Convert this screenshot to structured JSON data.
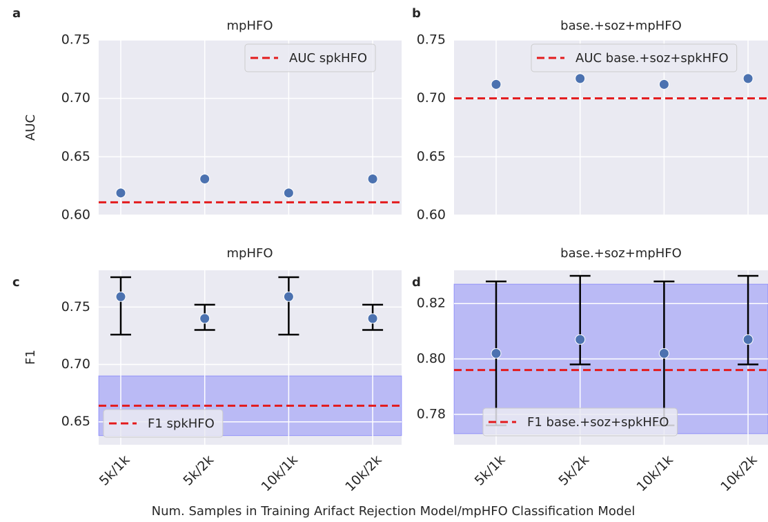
{
  "chart_data": [
    {
      "type": "scatter",
      "label": "a",
      "title": "mpHFO",
      "ylabel": "AUC",
      "categories": [
        null,
        null,
        null,
        null
      ],
      "values": [
        0.619,
        0.631,
        0.619,
        0.631
      ],
      "color": "#4c72b0",
      "reference": {
        "name": "AUC spkHFO",
        "value": 0.611,
        "color": "#e31a1c"
      },
      "ylim": [
        0.6,
        0.75
      ],
      "yticks": [
        {
          "value": 0.6,
          "label": "0.60"
        },
        0.65,
        {
          "value": 0.7,
          "label": "0.70"
        },
        0.75
      ],
      "legend": "upper right",
      "grid": true
    },
    {
      "type": "scatter",
      "label": "b",
      "title": "base.+soz+mpHFO",
      "categories": [
        null,
        null,
        null,
        null
      ],
      "values": [
        0.712,
        0.717,
        0.712,
        0.717
      ],
      "color": "#4c72b0",
      "reference": {
        "name": "AUC base.+soz+spkHFO",
        "value": 0.7,
        "color": "#e31a1c"
      },
      "ylim": [
        0.6,
        0.75
      ],
      "yticks": [
        {
          "value": 0.6,
          "label": "0.60"
        },
        0.65,
        {
          "value": 0.7,
          "label": "0.70"
        },
        0.75
      ],
      "legend": "upper right",
      "grid": true
    },
    {
      "type": "errorbar",
      "label": "c",
      "title": "mpHFO",
      "ylabel": "F1",
      "categories": [
        "5k/1k",
        "5k/2k",
        "10k/1k",
        "10k/2k"
      ],
      "values": [
        0.759,
        0.74,
        0.759,
        0.74
      ],
      "lower": [
        0.726,
        0.73,
        0.726,
        0.73
      ],
      "upper": [
        0.776,
        0.752,
        0.776,
        0.752
      ],
      "color": "#4c72b0",
      "reference": {
        "name": "F1 spkHFO",
        "value": 0.664,
        "color": "#e31a1c"
      },
      "band": [
        0.638,
        0.69
      ],
      "band_color": "rgba(60,60,255,0.28)",
      "ylim": [
        0.63,
        0.782
      ],
      "yticks": [
        0.65,
        {
          "value": 0.7,
          "label": "0.70"
        },
        0.75
      ],
      "legend": "lower left",
      "grid": true
    },
    {
      "type": "errorbar",
      "label": "d",
      "title": "base.+soz+mpHFO",
      "categories": [
        "5k/1k",
        "5k/2k",
        "10k/1k",
        "10k/2k"
      ],
      "values": [
        0.802,
        0.807,
        0.802,
        0.807
      ],
      "lower": [
        0.776,
        0.798,
        0.776,
        0.798
      ],
      "upper": [
        0.828,
        0.83,
        0.828,
        0.83
      ],
      "color": "#4c72b0",
      "reference": {
        "name": "F1 base.+soz+spkHFO",
        "value": 0.796,
        "color": "#e31a1c"
      },
      "band": [
        0.773,
        0.827
      ],
      "band_color": "rgba(60,60,255,0.28)",
      "ylim": [
        0.769,
        0.832
      ],
      "yticks": [
        0.78,
        {
          "value": 0.8,
          "label": "0.80"
        },
        0.82
      ],
      "legend": "lower left",
      "grid": true
    }
  ],
  "xlabel": "Num. Samples in Training Arifact Rejection Model/mpHFO Classification Model"
}
